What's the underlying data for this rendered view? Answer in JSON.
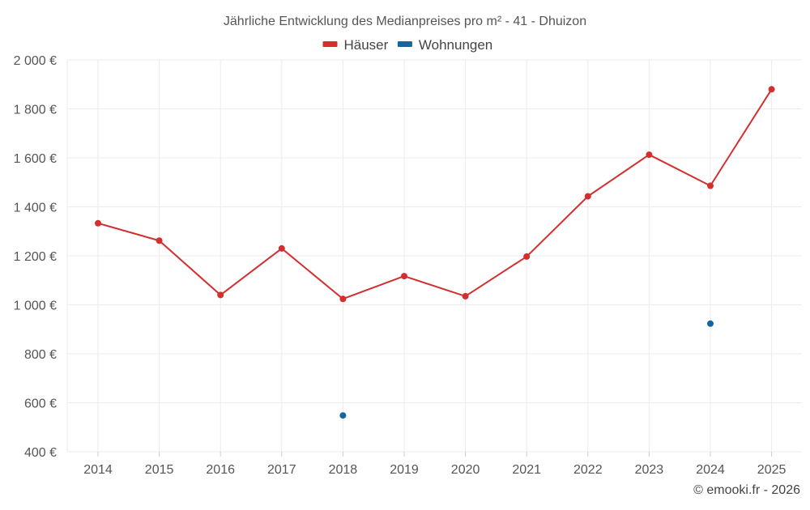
{
  "chart_data": {
    "type": "line",
    "title": "Jährliche Entwicklung des Medianpreises pro m² - 41 - Dhuizon",
    "xlabel": "",
    "ylabel": "",
    "categories": [
      "2014",
      "2015",
      "2016",
      "2017",
      "2018",
      "2019",
      "2020",
      "2021",
      "2022",
      "2023",
      "2024",
      "2025"
    ],
    "ylim": [
      400,
      2000
    ],
    "yticks": [
      400,
      600,
      800,
      1000,
      1200,
      1400,
      1600,
      1800,
      2000
    ],
    "ytick_labels": [
      "400 €",
      "600 €",
      "800 €",
      "1 000 €",
      "1 200 €",
      "1 400 €",
      "1 600 €",
      "1 800 €",
      "2 000 €"
    ],
    "grid": true,
    "legend_position": "top-center",
    "series": [
      {
        "name": "Häuser",
        "color": "#d32f2f",
        "values": [
          1333,
          1262,
          1040,
          1230,
          1024,
          1117,
          1035,
          1197,
          1443,
          1613,
          1486,
          1880
        ]
      },
      {
        "name": "Wohnungen",
        "color": "#1565a0",
        "values": [
          null,
          null,
          null,
          null,
          548,
          null,
          null,
          null,
          null,
          null,
          923,
          null
        ]
      }
    ]
  },
  "credit": "© emooki.fr - 2026"
}
